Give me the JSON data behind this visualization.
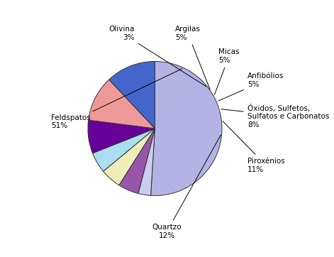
{
  "values": [
    51,
    3,
    5,
    5,
    5,
    8,
    11,
    12
  ],
  "colors": [
    "#b3b3e6",
    "#ccccee",
    "#9955aa",
    "#eeeebb",
    "#aaddee",
    "#660099",
    "#ee9999",
    "#4466cc"
  ],
  "label_texts": [
    "Feldspatos\n51%",
    "Olivina\n3%",
    "Argilas\n5%",
    "Micas\n5%",
    "Anfibólios\n5%",
    "Óxidos, Sulfetos,\nSulfatos e Carbonatos\n8%",
    "Piroxênios\n11%",
    "Quartzo\n12%"
  ],
  "startangle": 90,
  "background_color": "#ffffff",
  "fontsize": 7.5
}
